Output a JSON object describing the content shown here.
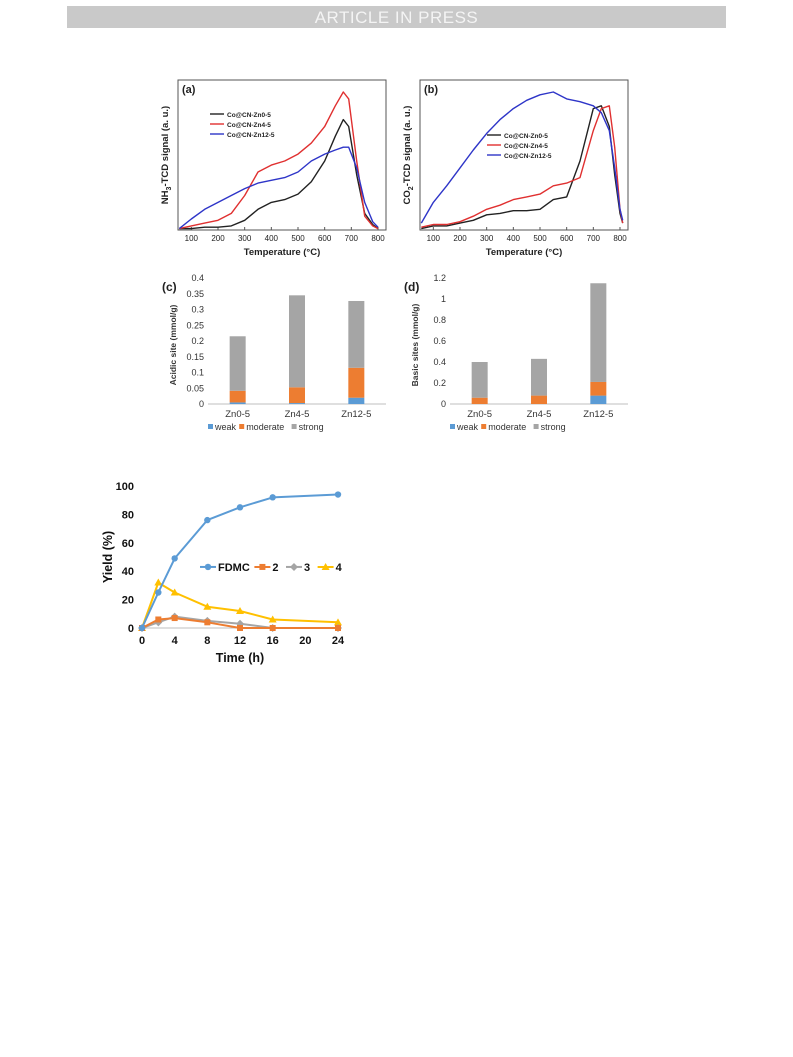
{
  "header": {
    "banner_text": "ARTICLE IN PRESS"
  },
  "chart_data": [
    {
      "type": "line",
      "panel_label": "(a)",
      "xlabel": "Temperature (°C)",
      "ylabel": "NH3-TCD signal (a. u.)",
      "ylabel_main": "NH",
      "ylabel_sub": "3",
      "ylabel_rest": "-TCD signal (a. u.)",
      "xlim": [
        50,
        830
      ],
      "ylim": [
        0,
        1
      ],
      "xticks": [
        "100",
        "200",
        "300",
        "400",
        "500",
        "600",
        "700",
        "800"
      ],
      "series": [
        {
          "name": "Co@CN-Zn0-5",
          "color": "#222222",
          "x": [
            55,
            100,
            150,
            200,
            250,
            300,
            350,
            400,
            450,
            500,
            550,
            600,
            640,
            670,
            690,
            720,
            750,
            780,
            800
          ],
          "y": [
            0.01,
            0.01,
            0.02,
            0.02,
            0.03,
            0.07,
            0.15,
            0.2,
            0.22,
            0.26,
            0.35,
            0.5,
            0.68,
            0.8,
            0.75,
            0.4,
            0.12,
            0.04,
            0.01
          ]
        },
        {
          "name": "Co@CN-Zn4-5",
          "color": "#e03030",
          "x": [
            55,
            100,
            150,
            200,
            250,
            300,
            350,
            400,
            450,
            500,
            550,
            600,
            640,
            670,
            690,
            720,
            750,
            780,
            800
          ],
          "y": [
            0.01,
            0.03,
            0.05,
            0.07,
            0.12,
            0.25,
            0.42,
            0.47,
            0.5,
            0.55,
            0.63,
            0.75,
            0.9,
            1.0,
            0.95,
            0.5,
            0.1,
            0.03,
            0.01
          ]
        },
        {
          "name": "Co@CN-Zn12-5",
          "color": "#2e35c8",
          "x": [
            55,
            100,
            150,
            200,
            250,
            300,
            350,
            400,
            450,
            500,
            550,
            600,
            640,
            670,
            690,
            720,
            750,
            780,
            800
          ],
          "y": [
            0.01,
            0.08,
            0.15,
            0.2,
            0.25,
            0.3,
            0.34,
            0.36,
            0.38,
            0.42,
            0.5,
            0.55,
            0.58,
            0.6,
            0.6,
            0.45,
            0.2,
            0.06,
            0.02
          ]
        }
      ]
    },
    {
      "type": "line",
      "panel_label": "(b)",
      "xlabel": "Temperature (°C)",
      "ylabel": "CO2-TCD signal (a. u.)",
      "ylabel_main": "CO",
      "ylabel_sub": "2",
      "ylabel_rest": "-TCD signal (a. u.)",
      "xlim": [
        50,
        830
      ],
      "ylim": [
        0,
        1
      ],
      "xticks": [
        "100",
        "200",
        "300",
        "400",
        "500",
        "600",
        "700",
        "800"
      ],
      "series": [
        {
          "name": "Co@CN-Zn0-5",
          "color": "#222222",
          "x": [
            55,
            100,
            150,
            200,
            250,
            300,
            350,
            400,
            450,
            500,
            550,
            600,
            650,
            700,
            730,
            760,
            780,
            800,
            810
          ],
          "y": [
            0.01,
            0.03,
            0.03,
            0.05,
            0.07,
            0.11,
            0.12,
            0.14,
            0.14,
            0.15,
            0.22,
            0.24,
            0.5,
            0.88,
            0.9,
            0.75,
            0.4,
            0.12,
            0.05
          ]
        },
        {
          "name": "Co@CN-Zn4-5",
          "color": "#e03030",
          "x": [
            55,
            100,
            150,
            200,
            250,
            300,
            350,
            400,
            450,
            500,
            550,
            600,
            650,
            700,
            730,
            760,
            780,
            800,
            810
          ],
          "y": [
            0.02,
            0.04,
            0.04,
            0.06,
            0.1,
            0.15,
            0.18,
            0.22,
            0.24,
            0.26,
            0.32,
            0.34,
            0.38,
            0.72,
            0.88,
            0.9,
            0.6,
            0.15,
            0.05
          ]
        },
        {
          "name": "Co@CN-Zn12-5",
          "color": "#2e35c8",
          "x": [
            55,
            100,
            150,
            200,
            250,
            300,
            350,
            400,
            450,
            500,
            550,
            600,
            650,
            700,
            730,
            760,
            780,
            800,
            810
          ],
          "y": [
            0.05,
            0.2,
            0.32,
            0.45,
            0.58,
            0.7,
            0.8,
            0.88,
            0.94,
            0.98,
            1.0,
            0.95,
            0.93,
            0.9,
            0.85,
            0.72,
            0.45,
            0.15,
            0.07
          ]
        }
      ]
    },
    {
      "type": "bar",
      "stacked": true,
      "panel_label": "(c)",
      "categories": [
        "Zn0-5",
        "Zn4-5",
        "Zn12-5"
      ],
      "ylabel": "Acidic site (mmol/g)",
      "ylim": [
        0,
        0.4
      ],
      "yticks": [
        "0",
        "0.05",
        "0.1",
        "0.15",
        "0.2",
        "0.25",
        "0.3",
        "0.35",
        "0.4"
      ],
      "series": [
        {
          "name": "weak",
          "color": "#5b9bd5",
          "values": [
            0.005,
            0.003,
            0.02
          ]
        },
        {
          "name": "moderate",
          "color": "#ed7d31",
          "values": [
            0.037,
            0.05,
            0.095
          ]
        },
        {
          "name": "strong",
          "color": "#a5a5a5",
          "values": [
            0.173,
            0.292,
            0.212
          ]
        }
      ],
      "legend_position": "bottom"
    },
    {
      "type": "bar",
      "stacked": true,
      "panel_label": "(d)",
      "categories": [
        "Zn0-5",
        "Zn4-5",
        "Zn12-5"
      ],
      "ylabel": "Basic sites (mmol/g)",
      "ylim": [
        0,
        1.2
      ],
      "yticks": [
        "0",
        "0.2",
        "0.4",
        "0.6",
        "0.8",
        "1",
        "1.2"
      ],
      "series": [
        {
          "name": "weak",
          "color": "#5b9bd5",
          "values": [
            0.0,
            0.0,
            0.08
          ]
        },
        {
          "name": "moderate",
          "color": "#ed7d31",
          "values": [
            0.06,
            0.08,
            0.13
          ]
        },
        {
          "name": "strong",
          "color": "#a5a5a5",
          "values": [
            0.34,
            0.35,
            0.94
          ]
        }
      ],
      "legend_position": "bottom"
    },
    {
      "type": "line",
      "panel_label": "",
      "xlabel": "Time (h)",
      "ylabel": "Yield (%)",
      "xlim": [
        0,
        24
      ],
      "ylim": [
        0,
        100
      ],
      "xticks": [
        "0",
        "4",
        "8",
        "12",
        "16",
        "20",
        "24"
      ],
      "yticks": [
        "0",
        "20",
        "40",
        "60",
        "80",
        "100"
      ],
      "legend_position": "center-right",
      "series": [
        {
          "name": "FDMC",
          "color": "#5b9bd5",
          "marker": "circle",
          "x": [
            0,
            2,
            4,
            8,
            12,
            16,
            24
          ],
          "y": [
            0,
            25,
            49,
            76,
            85,
            92,
            94
          ]
        },
        {
          "name": "2",
          "color": "#ed7d31",
          "marker": "square",
          "x": [
            0,
            2,
            4,
            8,
            12,
            16,
            24
          ],
          "y": [
            0,
            6,
            7,
            4,
            0,
            0,
            0
          ]
        },
        {
          "name": "3",
          "color": "#a5a5a5",
          "marker": "diamond",
          "x": [
            0,
            2,
            4,
            8,
            12,
            16,
            24
          ],
          "y": [
            0,
            4,
            8,
            5,
            3,
            0,
            0
          ]
        },
        {
          "name": "4",
          "color": "#ffc000",
          "marker": "triangle",
          "x": [
            0,
            2,
            4,
            8,
            12,
            16,
            24
          ],
          "y": [
            0,
            32,
            25,
            15,
            12,
            6,
            4
          ]
        }
      ]
    }
  ]
}
